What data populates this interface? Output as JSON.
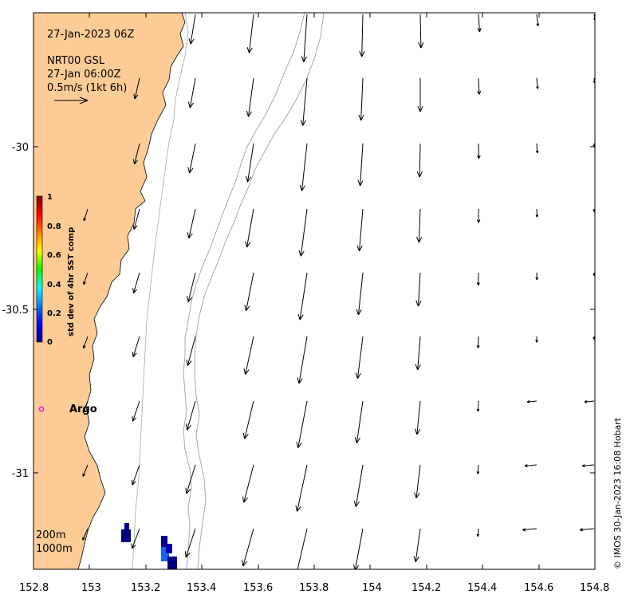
{
  "map": {
    "x_ticks": [
      "152.8",
      "153",
      "153.2",
      "153.4",
      "153.6",
      "153.8",
      "154",
      "154.2",
      "154.4",
      "154.6",
      "154.8"
    ],
    "y_ticks": [
      "-30",
      "-30.5",
      "-31"
    ],
    "colors": {
      "land": "#fccb96",
      "bathy": "#a8a8a8",
      "arrow": "#000000",
      "argo": "#ff00ff"
    }
  },
  "info": {
    "timestamp": "27-Jan-2023 06Z",
    "source": "NRT00 GSL",
    "date_time": "27-Jan 06:00Z",
    "scale_label": "0.5m/s (1kt 6h)"
  },
  "colorbar": {
    "label": "std dev of 4hr SST comp",
    "ticks": [
      "0",
      "0.2",
      "0.4",
      "0.6",
      "0.8",
      "1"
    ]
  },
  "argo": {
    "label": "Argo"
  },
  "isobaths": {
    "shallow": "200m",
    "deep": "1000m"
  },
  "credit": "© IMOS 30-Jan-2023 16:08 Hobart"
}
